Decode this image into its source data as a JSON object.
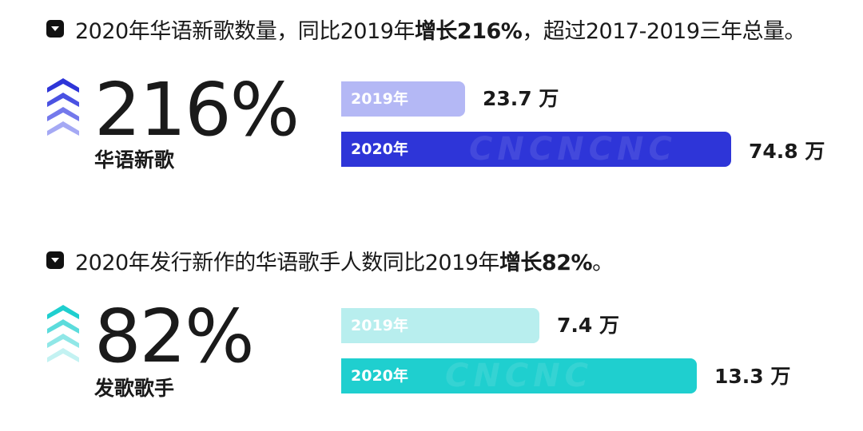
{
  "sections": [
    {
      "headline_pre": "2020年华语新歌数量，同比2019年",
      "headline_strong": "增长216%",
      "headline_post": "，超过2017-2019三年总量。",
      "big_number": "216%",
      "subtitle": "华语新歌",
      "colors": {
        "light": "#b4b8f5",
        "dark": "#2e35d8",
        "chev": [
          "#2e35d8",
          "#4a52e2",
          "#7479ec",
          "#a5a9f4"
        ]
      },
      "bars": [
        {
          "year": "2019年",
          "value": 23.7,
          "label": "23.7 万"
        },
        {
          "year": "2020年",
          "value": 74.8,
          "label": "74.8 万"
        }
      ]
    },
    {
      "headline_pre": "2020年发行新作的华语歌手人数同比2019年",
      "headline_strong": "增长82%",
      "headline_post": "。",
      "big_number": "82%",
      "subtitle": "发歌歌手",
      "colors": {
        "light": "#b8eeee",
        "dark": "#1fcfcf",
        "chev": [
          "#1fcfcf",
          "#5bdcdc",
          "#90e7e7",
          "#c3f2f2"
        ]
      },
      "bars": [
        {
          "year": "2019年",
          "value": 7.4,
          "label": "7.4 万"
        },
        {
          "year": "2020年",
          "value": 13.3,
          "label": "13.3 万"
        }
      ]
    }
  ],
  "chart_data": [
    {
      "type": "bar",
      "categories": [
        "2019年",
        "2020年"
      ],
      "values": [
        23.7,
        74.8
      ],
      "unit": "万"
    },
    {
      "type": "bar",
      "categories": [
        "2019年",
        "2020年"
      ],
      "values": [
        7.4,
        13.3
      ],
      "unit": "万"
    }
  ]
}
